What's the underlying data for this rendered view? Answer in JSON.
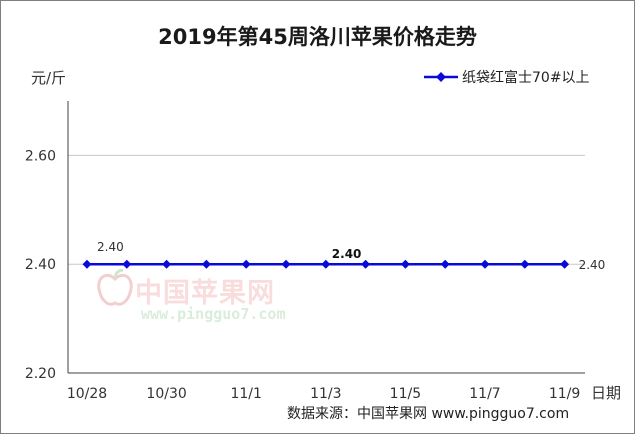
{
  "watermark": {
    "text": "中国苹果网",
    "url": "www.pingguo7.com"
  },
  "footer": {
    "source": "数据来源：中国苹果网 www.pingguo7.com"
  },
  "chart_data": {
    "type": "line",
    "title": "2019年第45周洛川苹果价格走势",
    "ylabel": "元/斤",
    "xlabel": "日期",
    "categories": [
      "10/28",
      "",
      "10/30",
      "",
      "11/1",
      "",
      "11/3",
      "",
      "11/5",
      "",
      "11/7",
      "",
      "11/9"
    ],
    "series": [
      {
        "name": "纸袋红富士70#以上",
        "color": "#0a0ad8",
        "values": [
          2.4,
          2.4,
          2.4,
          2.4,
          2.4,
          2.4,
          2.4,
          2.4,
          2.4,
          2.4,
          2.4,
          2.4,
          2.4
        ]
      }
    ],
    "data_labels": [
      {
        "index": 0,
        "text": "2.40"
      },
      {
        "index": 6,
        "text": "2.40"
      },
      {
        "index": 12,
        "text": "2.40"
      }
    ],
    "yticks": [
      "2.20",
      "2.40",
      "2.60"
    ],
    "ylim": [
      2.2,
      2.7
    ],
    "grid": true,
    "legend_position": "top-right"
  }
}
